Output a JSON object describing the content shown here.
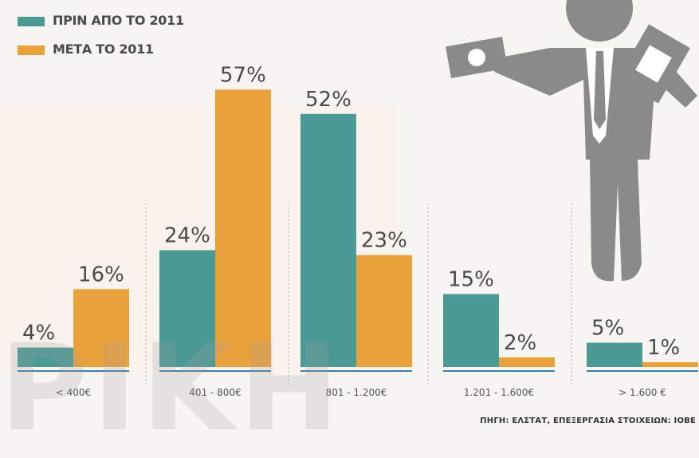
{
  "legend": {
    "before_label": "ΠΡΙΝ ΑΠΟ ΤΟ 2011",
    "after_label": "ΜΕΤΑ ΤΟ 2011"
  },
  "source": "ΠΗΓΗ: ΕΛΣΤΑΤ, ΕΠΕΞΕΡΓΑΣΙΑ ΣΤΟΙΧΕΙΩΝ: ΙΟΒΕ",
  "watermark": "ΡΙΚΗ",
  "colors": {
    "before": "#4c9a96",
    "after": "#e9a23b",
    "axis": "#3a7fa8",
    "figure": "#8a8a8a"
  },
  "chart_data": {
    "type": "bar",
    "categories": [
      "< 400€",
      "401 - 800€",
      "801 - 1.200€",
      "1.201 - 1.600€",
      "> 1.600 €"
    ],
    "series": [
      {
        "name": "ΠΡΙΝ ΑΠΟ ΤΟ 2011",
        "values": [
          4,
          24,
          52,
          15,
          5
        ]
      },
      {
        "name": "ΜΕΤΑ ΤΟ 2011",
        "values": [
          16,
          57,
          23,
          2,
          1
        ]
      }
    ],
    "value_labels": {
      "before": [
        "4%",
        "24%",
        "52%",
        "15%",
        "5%"
      ],
      "after": [
        "16%",
        "57%",
        "23%",
        "2%",
        "1%"
      ]
    },
    "ylim": [
      0,
      60
    ],
    "grid": false,
    "legend_position": "top-left"
  }
}
